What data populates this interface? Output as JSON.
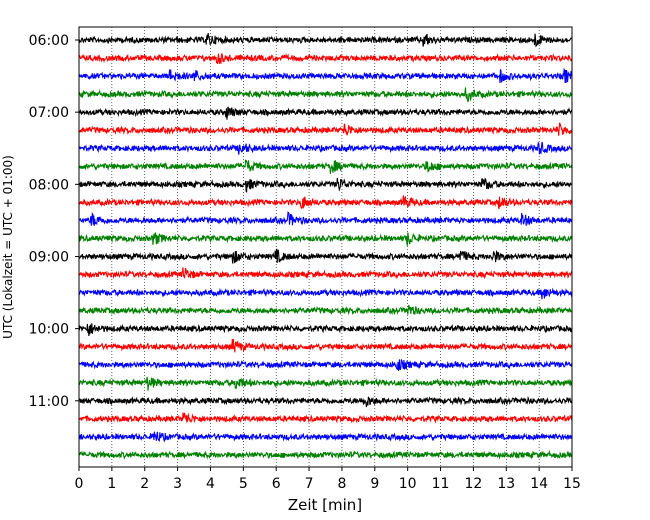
{
  "chart_data": {
    "type": "line",
    "title": "",
    "xlabel": "Zeit  [min]",
    "ylabel": "UTC (Lokalzeit = UTC + 01:00)",
    "xlim": [
      0,
      15
    ],
    "x_ticks": [
      0,
      1,
      2,
      3,
      4,
      5,
      6,
      7,
      8,
      9,
      10,
      11,
      12,
      13,
      14,
      15
    ],
    "grid": "vertical dotted at each minute",
    "y_tick_labels": [
      "06:00",
      "07:00",
      "08:00",
      "09:00",
      "10:00",
      "11:00"
    ],
    "y_tick_rows": [
      0,
      4,
      8,
      12,
      16,
      20
    ],
    "trace_interval_minutes": 15,
    "colors": [
      "#000000",
      "#ff0000",
      "#0000ff",
      "#008000"
    ],
    "series": [
      {
        "start": "06:00",
        "color": "#000000",
        "events_min": [
          3.9,
          10.5,
          13.9
        ]
      },
      {
        "start": "06:15",
        "color": "#ff0000",
        "events_min": [
          4.2
        ]
      },
      {
        "start": "06:30",
        "color": "#0000ff",
        "events_min": [
          2.8,
          3.5,
          12.8,
          14.8
        ]
      },
      {
        "start": "06:45",
        "color": "#008000",
        "events_min": [
          11.8
        ]
      },
      {
        "start": "07:00",
        "color": "#000000",
        "events_min": [
          4.5
        ]
      },
      {
        "start": "07:15",
        "color": "#ff0000",
        "events_min": [
          8.1,
          14.6
        ]
      },
      {
        "start": "07:30",
        "color": "#0000ff",
        "events_min": [
          4.9,
          14.0
        ]
      },
      {
        "start": "07:45",
        "color": "#008000",
        "events_min": [
          5.1,
          7.7,
          10.6
        ]
      },
      {
        "start": "08:00",
        "color": "#000000",
        "events_min": [
          5.1,
          7.9,
          12.3
        ]
      },
      {
        "start": "08:15",
        "color": "#ff0000",
        "events_min": [
          6.8,
          9.9,
          12.8
        ]
      },
      {
        "start": "08:30",
        "color": "#0000ff",
        "events_min": [
          0.4,
          6.4,
          13.5
        ]
      },
      {
        "start": "08:45",
        "color": "#008000",
        "events_min": [
          2.3,
          10.0
        ]
      },
      {
        "start": "09:00",
        "color": "#000000",
        "events_min": [
          4.7,
          6.0,
          11.6,
          12.6
        ]
      },
      {
        "start": "09:15",
        "color": "#ff0000",
        "events_min": [
          3.2
        ]
      },
      {
        "start": "09:30",
        "color": "#0000ff",
        "events_min": [
          14.1
        ]
      },
      {
        "start": "09:45",
        "color": "#008000",
        "events_min": [
          10.0
        ]
      },
      {
        "start": "10:00",
        "color": "#000000",
        "events_min": [
          0.3
        ]
      },
      {
        "start": "10:15",
        "color": "#ff0000",
        "events_min": [
          4.7
        ]
      },
      {
        "start": "10:30",
        "color": "#0000ff",
        "events_min": [
          9.7
        ]
      },
      {
        "start": "10:45",
        "color": "#008000",
        "events_min": [
          2.1,
          4.8
        ]
      },
      {
        "start": "11:00",
        "color": "#000000",
        "events_min": [
          8.7
        ]
      },
      {
        "start": "11:15",
        "color": "#ff0000",
        "events_min": [
          3.2
        ]
      },
      {
        "start": "11:30",
        "color": "#0000ff",
        "events_min": [
          2.3
        ]
      },
      {
        "start": "11:45",
        "color": "#008000",
        "events_min": []
      }
    ]
  }
}
